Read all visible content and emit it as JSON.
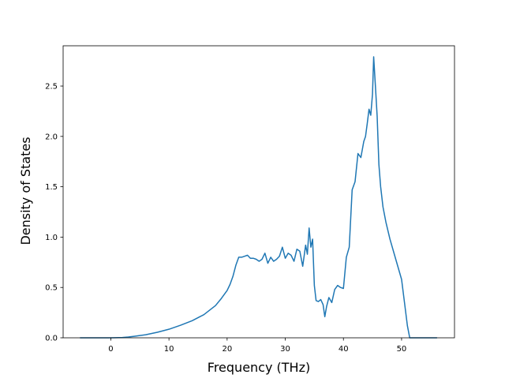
{
  "chart_data": {
    "type": "line",
    "title": "",
    "xlabel": "Frequency (THz)",
    "ylabel": "Density of States",
    "xlim": [
      -8.2,
      59.1
    ],
    "ylim": [
      0,
      2.9
    ],
    "xticks": [
      0,
      10,
      20,
      30,
      40,
      50
    ],
    "yticks": [
      0.0,
      0.5,
      1.0,
      1.5,
      2.0,
      2.5
    ],
    "xtick_labels": [
      "0",
      "10",
      "20",
      "30",
      "40",
      "50"
    ],
    "ytick_labels": [
      "0.0",
      "0.5",
      "1.0",
      "1.5",
      "2.0",
      "2.5"
    ],
    "grid": false,
    "legend": "none",
    "colors": {
      "line": "#1f77b4",
      "axes": "#000000",
      "background": "#ffffff"
    },
    "series": [
      {
        "x": [
          -5.2,
          -4,
          -2,
          0,
          2,
          3,
          4,
          6,
          8,
          10,
          12,
          14,
          16,
          18,
          19,
          20,
          20.5,
          21,
          21.5,
          22,
          22.5,
          23,
          23.5,
          24,
          24.5,
          25,
          25.5,
          26,
          26.5,
          27,
          27.5,
          28,
          28.5,
          29,
          29.5,
          30,
          30.5,
          31,
          31.5,
          32,
          32.5,
          33,
          33.5,
          33.8,
          34.1,
          34.4,
          34.7,
          35,
          35.3,
          35.7,
          36.1,
          36.5,
          36.8,
          37.1,
          37.5,
          38,
          38.5,
          39,
          39.5,
          40,
          40.5,
          41,
          41.5,
          42,
          42.5,
          43,
          43.5,
          43.8,
          44.1,
          44.4,
          44.7,
          45,
          45.2,
          45.5,
          45.8,
          46.1,
          46.4,
          46.8,
          47.3,
          48,
          49,
          50,
          50.5,
          51,
          51.4,
          53,
          56
        ],
        "y": [
          0,
          0,
          0,
          0,
          0.003,
          0.008,
          0.015,
          0.03,
          0.055,
          0.085,
          0.125,
          0.17,
          0.23,
          0.32,
          0.39,
          0.47,
          0.53,
          0.61,
          0.72,
          0.8,
          0.8,
          0.81,
          0.82,
          0.79,
          0.79,
          0.78,
          0.76,
          0.78,
          0.84,
          0.74,
          0.8,
          0.76,
          0.78,
          0.81,
          0.9,
          0.79,
          0.84,
          0.82,
          0.76,
          0.88,
          0.86,
          0.71,
          0.92,
          0.83,
          1.09,
          0.9,
          0.98,
          0.52,
          0.37,
          0.36,
          0.38,
          0.33,
          0.21,
          0.31,
          0.4,
          0.35,
          0.48,
          0.52,
          0.5,
          0.49,
          0.8,
          0.9,
          1.47,
          1.55,
          1.83,
          1.79,
          1.95,
          2.0,
          2.13,
          2.27,
          2.21,
          2.42,
          2.79,
          2.5,
          2.2,
          1.72,
          1.5,
          1.3,
          1.15,
          0.98,
          0.78,
          0.58,
          0.35,
          0.12,
          0,
          0,
          0
        ]
      }
    ]
  }
}
